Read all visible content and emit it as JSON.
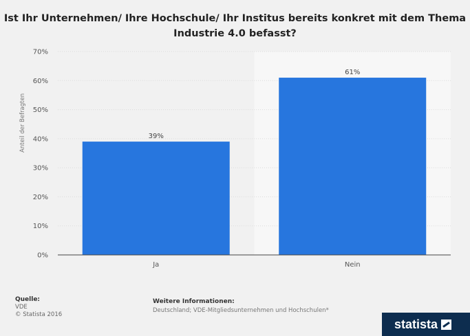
{
  "chart_data": {
    "type": "bar",
    "title": "Ist Ihr Unternehmen/ Ihre Hochschule/ Ihr Institus bereits konkret mit dem Thema Industrie 4.0 befasst?",
    "ylabel": "Anteil der Befragten",
    "xlabel": "",
    "categories": [
      "Ja",
      "Nein"
    ],
    "values": [
      39,
      61
    ],
    "data_labels": [
      "39%",
      "61%"
    ],
    "ylim": [
      0,
      70
    ],
    "yticks": [
      "0%",
      "10%",
      "20%",
      "30%",
      "40%",
      "50%",
      "60%",
      "70%"
    ],
    "bar_color": "#2776de",
    "grid": true,
    "legend": "none"
  },
  "footer": {
    "source_head": "Quelle:",
    "source": "VDE",
    "copyright": "© Statista 2016",
    "info_head": "Weitere Informationen:",
    "info": "Deutschland; VDE-Mitgliedsunternehmen und Hochschulen*"
  },
  "brand": "statista"
}
